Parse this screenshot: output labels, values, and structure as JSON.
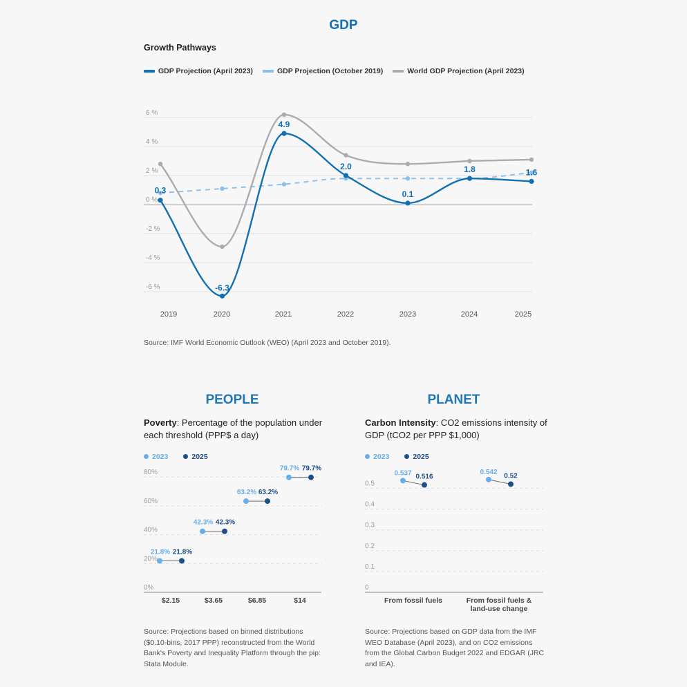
{
  "gdp_section": {
    "title": "GDP",
    "subtitle": "Growth Pathways",
    "legend": [
      {
        "label": "GDP Projection (April 2023)",
        "color": "#1170b3"
      },
      {
        "label": "GDP Projection (October 2019)",
        "color": "#8fc0ec"
      },
      {
        "label": "World GDP Projection (April 2023)",
        "color": "#a9acb0"
      }
    ],
    "source": "Source: IMF World Economic Outlook (WEO) (April 2023 and October 2019)."
  },
  "people_section": {
    "title": "PEOPLE",
    "subtitle_bold": "Poverty",
    "subtitle_rest": ": Percentage of the population under each threshold (PPP$ a day)",
    "legend": [
      {
        "label": "2023",
        "color": "#6aaee8"
      },
      {
        "label": "2025",
        "color": "#1d4f87"
      }
    ],
    "source": "Source: Projections based on binned distributions ($0.10-bins, 2017 PPP) reconstructed from the World Bank's Poverty and Inequality Platform through the pip: Stata Module."
  },
  "planet_section": {
    "title": "PLANET",
    "subtitle_bold": "Carbon Intensity",
    "subtitle_rest": ": CO2 emissions intensity of GDP (tCO2 per PPP $1,000)",
    "legend": [
      {
        "label": "2023",
        "color": "#6aaee8"
      },
      {
        "label": "2025",
        "color": "#1d4f87"
      }
    ],
    "source": "Source: Projections based on GDP data from the IMF WEO Database (April 2023), and on CO2 emissions from the Global Carbon Budget 2022 and EDGAR (JRC and IEA)."
  },
  "chart_data": [
    {
      "type": "line",
      "title": "GDP",
      "subtitle": "Growth Pathways",
      "x": [
        "2019",
        "2020",
        "2021",
        "2022",
        "2023",
        "2024",
        "2025"
      ],
      "ylim": [
        -7,
        7
      ],
      "yticks": [
        -6,
        -4,
        -2,
        0,
        2,
        4,
        6
      ],
      "ytick_labels": [
        "-6 %",
        "-4 %",
        "-2 %",
        "0 %",
        "2 %",
        "4 %",
        "6 %"
      ],
      "grid": true,
      "legend_position": "top-left",
      "series": [
        {
          "name": "GDP Projection (April 2023)",
          "color": "#1170b3",
          "style": "solid",
          "values": [
            0.3,
            -6.3,
            4.9,
            2.0,
            0.1,
            1.8,
            1.6
          ],
          "labels": [
            "0.3",
            "-6.3",
            "4.9",
            "2.0",
            "0.1",
            "1.8",
            "1.6"
          ]
        },
        {
          "name": "GDP Projection (October 2019)",
          "color": "#8fc0ec",
          "style": "dashed",
          "values": [
            0.8,
            1.1,
            1.4,
            1.8,
            1.8,
            1.8,
            2.2
          ]
        },
        {
          "name": "World GDP Projection (April 2023)",
          "color": "#a9acb0",
          "style": "solid",
          "values": [
            2.8,
            -2.9,
            6.2,
            3.4,
            2.8,
            3.0,
            3.1
          ]
        }
      ]
    },
    {
      "type": "dumbbell",
      "title": "PEOPLE",
      "categories": [
        "$2.15",
        "$3.65",
        "$6.85",
        "$14"
      ],
      "ylim": [
        0,
        85
      ],
      "yticks": [
        0,
        20,
        40,
        60,
        80
      ],
      "ytick_labels": [
        "0%",
        "20%",
        "40%",
        "60%",
        "80%"
      ],
      "x_range": [
        0,
        80
      ],
      "x_mapping": "value",
      "series": [
        {
          "name": "2023",
          "color": "#6aaee8",
          "values": [
            21.8,
            42.3,
            63.2,
            79.7
          ],
          "labels": [
            "21.8%",
            "42.3%",
            "63.2%",
            "79.7%"
          ]
        },
        {
          "name": "2025",
          "color": "#1d4f87",
          "values": [
            21.8,
            42.3,
            63.2,
            79.7
          ],
          "labels": [
            "21.8%",
            "42.3%",
            "63.2%",
            "79.7%"
          ]
        }
      ]
    },
    {
      "type": "dumbbell",
      "title": "PLANET",
      "categories": [
        "From fossil fuels",
        "From fossil fuels & land-use change"
      ],
      "ylim": [
        0,
        0.55
      ],
      "yticks": [
        0,
        0.1,
        0.2,
        0.3,
        0.4,
        0.5
      ],
      "ytick_labels": [
        "0",
        "0.1",
        "0.2",
        "0.3",
        "0.4",
        "0.5"
      ],
      "series": [
        {
          "name": "2023",
          "color": "#6aaee8",
          "values": [
            0.537,
            0.542
          ],
          "labels": [
            "0.537",
            "0.542"
          ]
        },
        {
          "name": "2025",
          "color": "#1d4f87",
          "values": [
            0.516,
            0.52
          ],
          "labels": [
            "0.516",
            "0.52"
          ]
        }
      ]
    }
  ]
}
